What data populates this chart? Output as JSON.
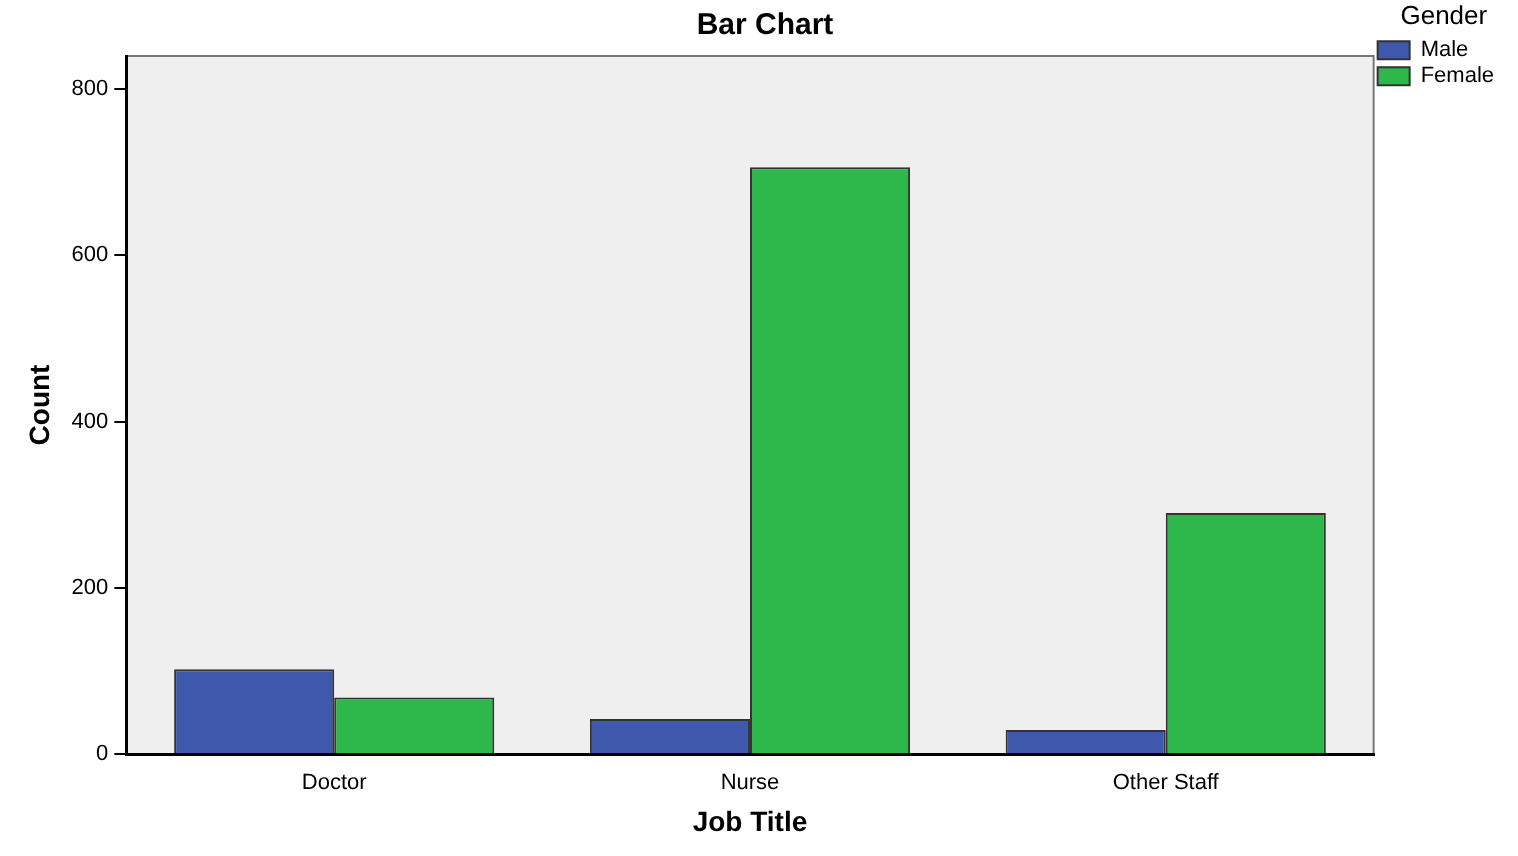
{
  "chart_data": {
    "type": "bar",
    "title": "Bar Chart",
    "xlabel": "Job Title",
    "ylabel": "Count",
    "legend_title": "Gender",
    "categories": [
      "Doctor",
      "Nurse",
      "Other Staff"
    ],
    "series": [
      {
        "name": "Male",
        "color": "#3e58ac",
        "values": [
          102,
          42,
          29
        ]
      },
      {
        "name": "Female",
        "color": "#2eb74a",
        "values": [
          68,
          706,
          290
        ]
      }
    ],
    "ylim": [
      0,
      840
    ],
    "yticks": [
      0,
      200,
      400,
      600,
      800
    ],
    "grid": false,
    "legend": "top right"
  }
}
